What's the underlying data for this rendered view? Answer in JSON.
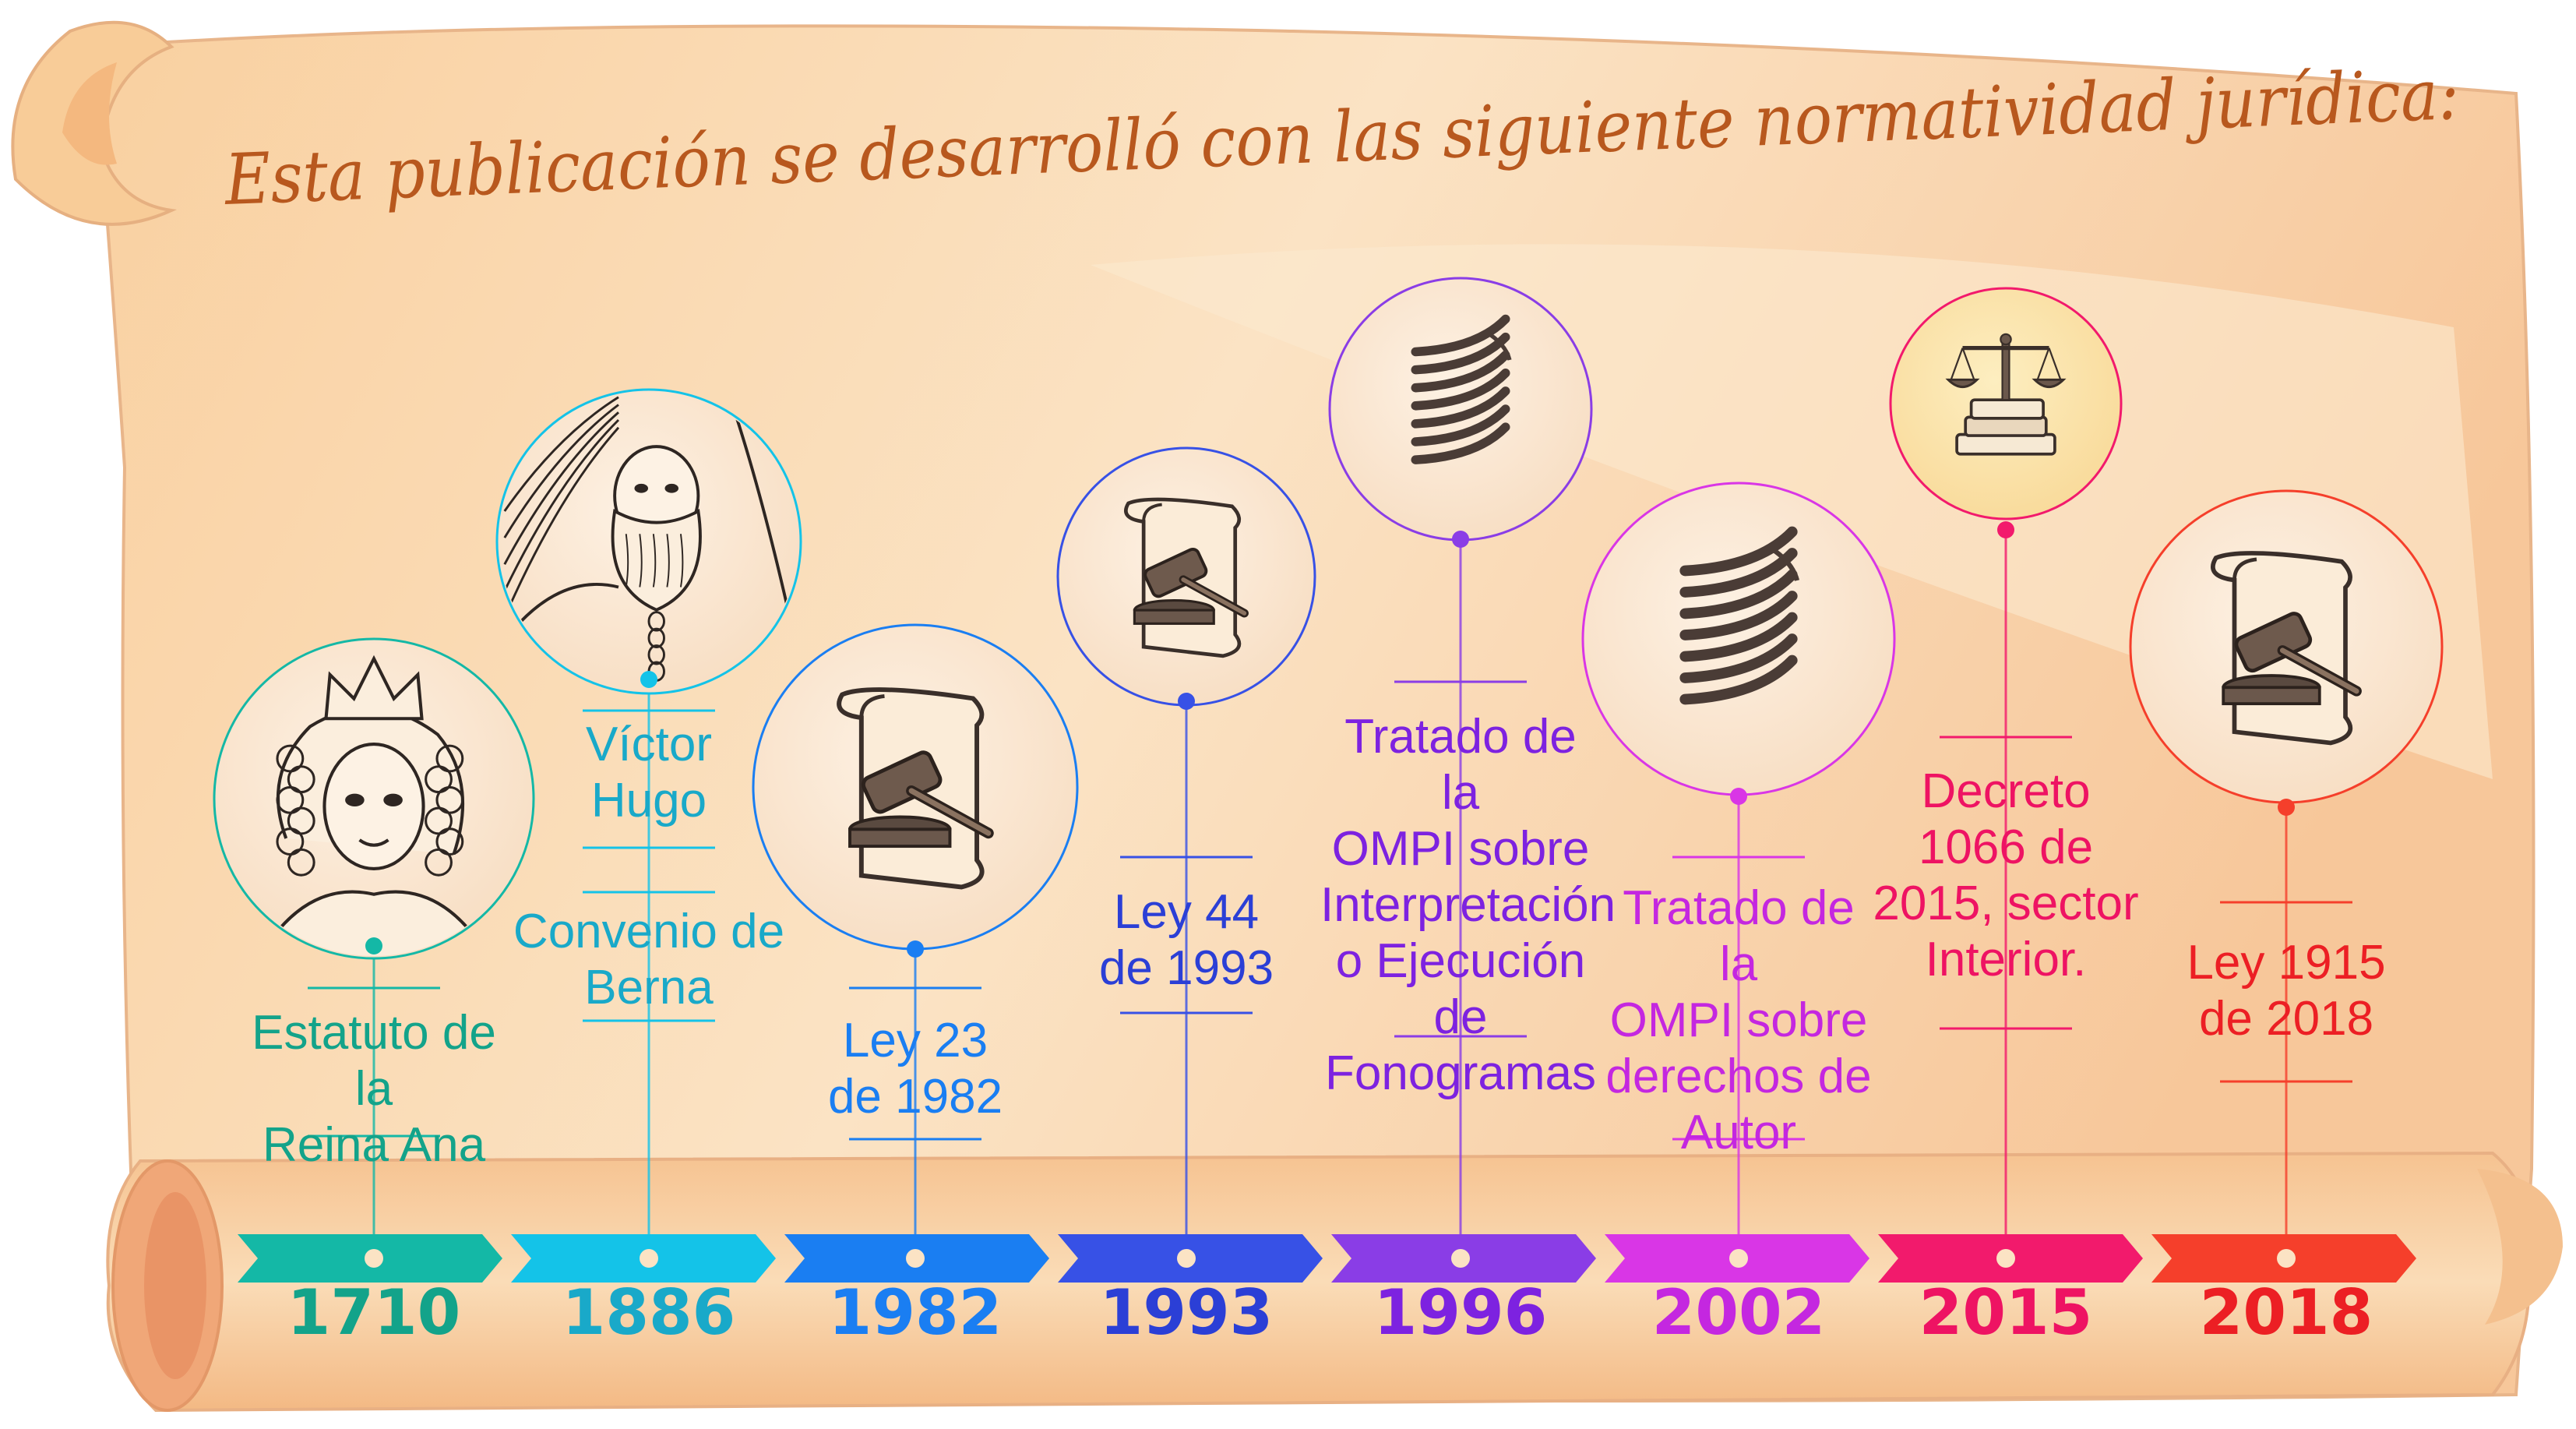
{
  "title": "Esta publicación se desarrolló con las siguiente normatividad jurídica:",
  "colors": {
    "parchment": "#f8d1a4",
    "parchment_light": "#fbe6c8",
    "title": "#b8581e"
  },
  "timeline": [
    {
      "year": "1710",
      "color": "#14b8a6",
      "year_color": "#13a38a",
      "lines": [
        "Estatuto de la",
        "Reina Ana"
      ],
      "icon": "queen-anne-portrait-icon"
    },
    {
      "year": "1886",
      "color": "#14c3e8",
      "year_color": "#19a9c9",
      "lines": [
        "Convenio de",
        "Berna"
      ],
      "extra_lines": [
        "Víctor",
        "Hugo"
      ],
      "icon": "victor-hugo-portrait-icon"
    },
    {
      "year": "1982",
      "color": "#1a7ef2",
      "year_color": "#1a7ef2",
      "lines": [
        "Ley 23",
        "de 1982"
      ],
      "icon": "gavel-scroll-icon"
    },
    {
      "year": "1993",
      "color": "#3751e6",
      "year_color": "#2b3fd6",
      "lines": [
        "Ley 44",
        "de 1993"
      ],
      "icon": "gavel-scroll-icon"
    },
    {
      "year": "1996",
      "color": "#8a3de6",
      "year_color": "#7d22e0",
      "lines": [
        "Tratado de la",
        "OMPI sobre",
        "Interpretación",
        "o Ejecución",
        "de Fonogramas"
      ],
      "icon": "wipo-logo-icon"
    },
    {
      "year": "2002",
      "color": "#d936e6",
      "year_color": "#c427e0",
      "lines": [
        "Tratado de la",
        "OMPI sobre",
        "derechos de",
        "Autor"
      ],
      "icon": "wipo-logo-icon"
    },
    {
      "year": "2015",
      "color": "#f21a6c",
      "year_color": "#ee1363",
      "lines": [
        "Decreto",
        "1066 de",
        "2015, sector",
        "Interior."
      ],
      "icon": "justice-scale-books-icon"
    },
    {
      "year": "2018",
      "color": "#f53f2b",
      "year_color": "#ec1f24",
      "lines": [
        "Ley 1915",
        "de 2018"
      ],
      "icon": "gavel-scroll-icon"
    }
  ]
}
